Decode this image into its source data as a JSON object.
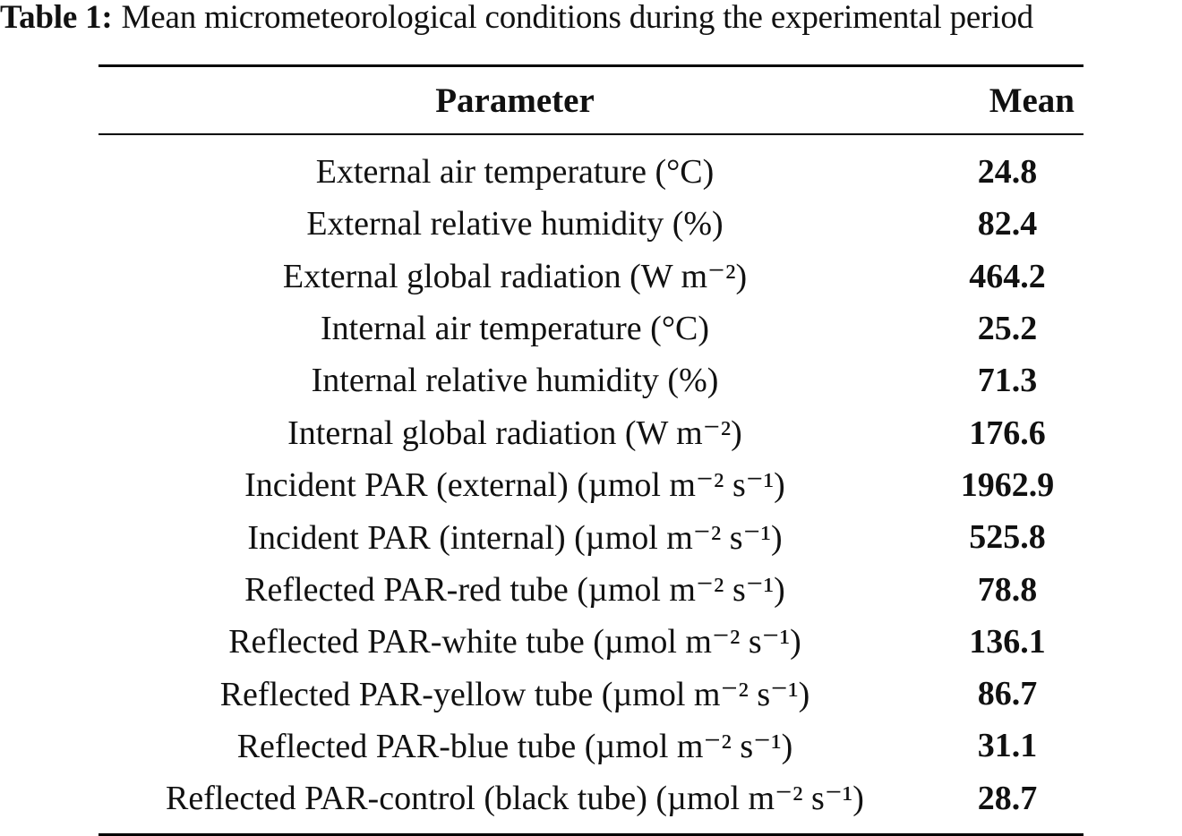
{
  "caption": {
    "label": "Table 1:",
    "text": "Mean micrometeorological conditions during the experimental period"
  },
  "table": {
    "headers": {
      "parameter": "Parameter",
      "mean": "Mean"
    },
    "rows": [
      {
        "parameter": "External air temperature (°C)",
        "mean": "24.8"
      },
      {
        "parameter": "External relative humidity (%)",
        "mean": "82.4"
      },
      {
        "parameter": "External global radiation (W m⁻²)",
        "mean": "464.2"
      },
      {
        "parameter": "Internal air temperature (°C)",
        "mean": "25.2"
      },
      {
        "parameter": "Internal relative humidity (%)",
        "mean": "71.3"
      },
      {
        "parameter": "Internal global radiation (W m⁻²)",
        "mean": "176.6"
      },
      {
        "parameter": "Incident PAR (external) (µmol m⁻² s⁻¹)",
        "mean": "1962.9"
      },
      {
        "parameter": "Incident PAR (internal) (µmol m⁻² s⁻¹)",
        "mean": "525.8"
      },
      {
        "parameter": "Reflected PAR-red tube (µmol m⁻² s⁻¹)",
        "mean": "78.8"
      },
      {
        "parameter": "Reflected PAR-white tube (µmol m⁻² s⁻¹)",
        "mean": "136.1"
      },
      {
        "parameter": "Reflected PAR-yellow tube (µmol m⁻² s⁻¹)",
        "mean": "86.7"
      },
      {
        "parameter": "Reflected PAR-blue tube (µmol m⁻² s⁻¹)",
        "mean": "31.1"
      },
      {
        "parameter": "Reflected PAR-control (black tube) (µmol m⁻² s⁻¹)",
        "mean": "28.7"
      }
    ]
  }
}
